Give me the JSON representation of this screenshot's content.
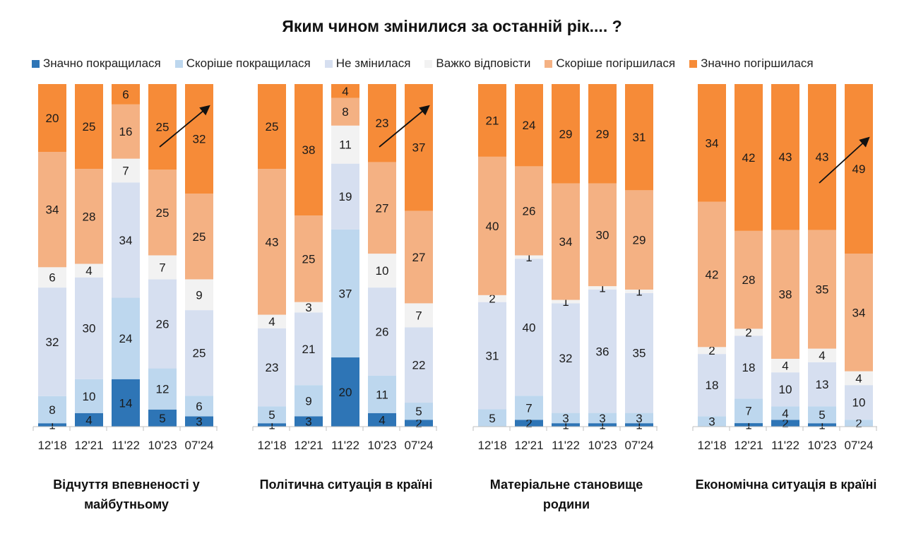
{
  "chart_data": {
    "type": "bar",
    "stacked": true,
    "percent": true,
    "title": "Яким чином змінилися за останній рік.... ?",
    "legend_position": "top",
    "series_names": [
      "Значно покращилася",
      "Скоріше покращилася",
      "Не змінилася",
      "Важко відповісти",
      "Скоріше погіршилася",
      "Значно погіршилася"
    ],
    "series_colors": [
      "#2e75b6",
      "#bdd7ee",
      "#d6dff0",
      "#f2f2f2",
      "#f4b183",
      "#f68b38"
    ],
    "categories": [
      "12'18",
      "12'21",
      "11'22",
      "10'23",
      "07'24"
    ],
    "groups": [
      {
        "label": "Відчуття впевненості у майбутньому",
        "label_lines": [
          "Відчуття впевненості у",
          "майбутньому"
        ],
        "trend_arrow": true,
        "series": [
          {
            "name": "Значно покращилася",
            "values": [
              1,
              4,
              14,
              5,
              3
            ]
          },
          {
            "name": "Скоріше покращилася",
            "values": [
              8,
              10,
              24,
              12,
              6
            ]
          },
          {
            "name": "Не змінилася",
            "values": [
              32,
              30,
              34,
              26,
              25
            ]
          },
          {
            "name": "Важко відповісти",
            "values": [
              6,
              4,
              7,
              7,
              9
            ]
          },
          {
            "name": "Скоріше погіршилася",
            "values": [
              34,
              28,
              16,
              25,
              25
            ]
          },
          {
            "name": "Значно погіршилася",
            "values": [
              20,
              25,
              6,
              25,
              32
            ]
          }
        ]
      },
      {
        "label": "Політична ситуація в країні",
        "label_lines": [
          "Політична ситуація в країні"
        ],
        "trend_arrow": true,
        "series": [
          {
            "name": "Значно покращилася",
            "values": [
              1,
              3,
              20,
              4,
              2
            ]
          },
          {
            "name": "Скоріше покращилася",
            "values": [
              5,
              9,
              37,
              11,
              5
            ]
          },
          {
            "name": "Не змінилася",
            "values": [
              23,
              21,
              19,
              26,
              22
            ]
          },
          {
            "name": "Важко відповісти",
            "values": [
              4,
              3,
              11,
              10,
              7
            ]
          },
          {
            "name": "Скоріше погіршилася",
            "values": [
              43,
              25,
              8,
              27,
              27
            ]
          },
          {
            "name": "Значно погіршилася",
            "values": [
              25,
              38,
              4,
              23,
              37
            ]
          }
        ]
      },
      {
        "label": "Матеріальне становище родини",
        "label_lines": [
          "Матеріальне становище",
          "родини"
        ],
        "trend_arrow": false,
        "series": [
          {
            "name": "Значно покращилася",
            "values": [
              0,
              2,
              1,
              1,
              1
            ]
          },
          {
            "name": "Скоріше покращилася",
            "values": [
              5,
              7,
              3,
              3,
              3
            ]
          },
          {
            "name": "Не змінилася",
            "values": [
              31,
              40,
              32,
              36,
              35
            ]
          },
          {
            "name": "Важко відповісти",
            "values": [
              2,
              1,
              1,
              1,
              1
            ]
          },
          {
            "name": "Скоріше погіршилася",
            "values": [
              40,
              26,
              34,
              30,
              29
            ]
          },
          {
            "name": "Значно погіршилася",
            "values": [
              21,
              24,
              29,
              29,
              31
            ]
          }
        ]
      },
      {
        "label": "Економічна ситуація в країні",
        "label_lines": [
          "Економічна ситуація в країні"
        ],
        "trend_arrow": true,
        "series": [
          {
            "name": "Значно покращилася",
            "values": [
              0,
              1,
              2,
              1,
              0
            ]
          },
          {
            "name": "Скоріше покращилася",
            "values": [
              3,
              7,
              4,
              5,
              2
            ]
          },
          {
            "name": "Не змінилася",
            "values": [
              18,
              18,
              10,
              13,
              10
            ]
          },
          {
            "name": "Важко відповісти",
            "values": [
              2,
              2,
              4,
              4,
              4
            ]
          },
          {
            "name": "Скоріше погіршилася",
            "values": [
              42,
              28,
              38,
              35,
              34
            ]
          },
          {
            "name": "Значно погіршилася",
            "values": [
              34,
              42,
              43,
              43,
              49
            ]
          }
        ]
      }
    ]
  }
}
